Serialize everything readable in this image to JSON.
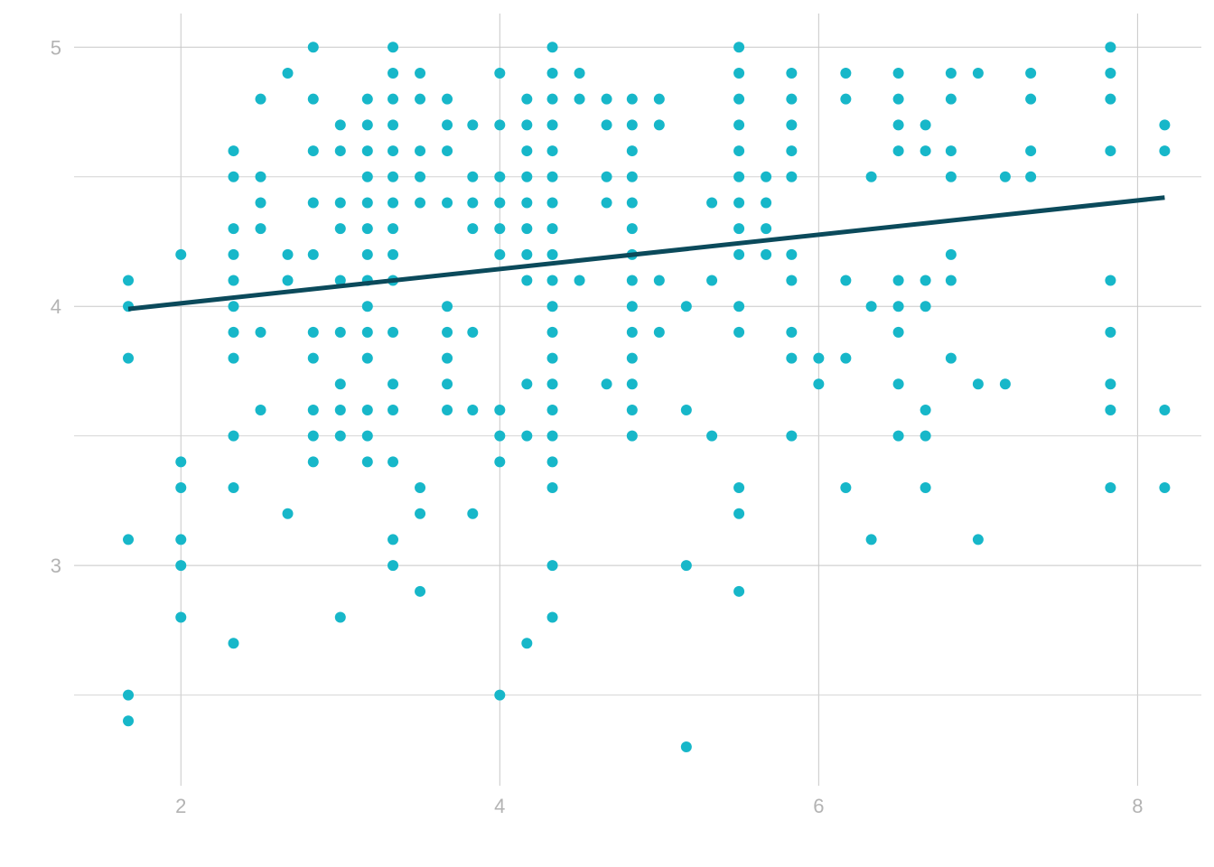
{
  "chart_data": {
    "type": "scatter",
    "title": "",
    "xlabel": "",
    "ylabel": "",
    "xlim": [
      1.33,
      8.4
    ],
    "ylim": [
      2.15,
      5.13
    ],
    "x_ticks": [
      2,
      4,
      6,
      8
    ],
    "x_tick_labels": [
      "2",
      "4",
      "6",
      "8"
    ],
    "y_ticks": [
      3,
      4,
      5
    ],
    "y_tick_labels": [
      "3",
      "4",
      "5"
    ],
    "y_minor_gridlines": [
      2.5,
      3.5,
      4.5
    ],
    "grid": true,
    "legend": "none",
    "colors": {
      "points": "#17b7c9",
      "fit_line": "#0b4a5b",
      "grid": "#c8c8c8",
      "tick_text": "#b3b3b3"
    },
    "fit_line": {
      "x": [
        1.67,
        8.17
      ],
      "y": [
        3.99,
        4.42
      ]
    },
    "points": [
      [
        1.67,
        4.1
      ],
      [
        1.67,
        4.0
      ],
      [
        1.67,
        3.8
      ],
      [
        1.67,
        3.1
      ],
      [
        1.67,
        2.5
      ],
      [
        1.67,
        2.4
      ],
      [
        2.0,
        4.2
      ],
      [
        2.0,
        3.4
      ],
      [
        2.0,
        3.3
      ],
      [
        2.0,
        3.1
      ],
      [
        2.0,
        3.0
      ],
      [
        2.0,
        2.8
      ],
      [
        2.33,
        4.6
      ],
      [
        2.33,
        4.5
      ],
      [
        2.33,
        4.3
      ],
      [
        2.33,
        4.2
      ],
      [
        2.33,
        4.1
      ],
      [
        2.33,
        4.0
      ],
      [
        2.33,
        3.9
      ],
      [
        2.33,
        3.8
      ],
      [
        2.33,
        3.5
      ],
      [
        2.33,
        3.3
      ],
      [
        2.33,
        2.7
      ],
      [
        2.5,
        4.8
      ],
      [
        2.5,
        4.5
      ],
      [
        2.5,
        4.4
      ],
      [
        2.5,
        4.3
      ],
      [
        2.5,
        3.9
      ],
      [
        2.5,
        3.6
      ],
      [
        2.67,
        4.9
      ],
      [
        2.67,
        4.2
      ],
      [
        2.67,
        4.1
      ],
      [
        2.67,
        3.2
      ],
      [
        2.83,
        5.0
      ],
      [
        2.83,
        4.8
      ],
      [
        2.83,
        4.6
      ],
      [
        2.83,
        4.4
      ],
      [
        2.83,
        4.2
      ],
      [
        2.83,
        3.9
      ],
      [
        2.83,
        3.8
      ],
      [
        2.83,
        3.6
      ],
      [
        2.83,
        3.5
      ],
      [
        2.83,
        3.4
      ],
      [
        3.0,
        4.7
      ],
      [
        3.0,
        4.6
      ],
      [
        3.0,
        4.4
      ],
      [
        3.0,
        4.3
      ],
      [
        3.0,
        4.1
      ],
      [
        3.0,
        3.9
      ],
      [
        3.0,
        3.7
      ],
      [
        3.0,
        3.6
      ],
      [
        3.0,
        3.5
      ],
      [
        3.0,
        2.8
      ],
      [
        3.17,
        4.8
      ],
      [
        3.17,
        4.7
      ],
      [
        3.17,
        4.6
      ],
      [
        3.17,
        4.5
      ],
      [
        3.17,
        4.4
      ],
      [
        3.17,
        4.3
      ],
      [
        3.17,
        4.2
      ],
      [
        3.17,
        4.1
      ],
      [
        3.17,
        4.0
      ],
      [
        3.17,
        3.9
      ],
      [
        3.17,
        3.8
      ],
      [
        3.17,
        3.6
      ],
      [
        3.17,
        3.5
      ],
      [
        3.17,
        3.4
      ],
      [
        3.33,
        5.0
      ],
      [
        3.33,
        4.9
      ],
      [
        3.33,
        4.8
      ],
      [
        3.33,
        4.7
      ],
      [
        3.33,
        4.6
      ],
      [
        3.33,
        4.5
      ],
      [
        3.33,
        4.4
      ],
      [
        3.33,
        4.3
      ],
      [
        3.33,
        4.2
      ],
      [
        3.33,
        4.1
      ],
      [
        3.33,
        3.9
      ],
      [
        3.33,
        3.7
      ],
      [
        3.33,
        3.6
      ],
      [
        3.33,
        3.4
      ],
      [
        3.33,
        3.1
      ],
      [
        3.33,
        3.0
      ],
      [
        3.5,
        4.9
      ],
      [
        3.5,
        4.8
      ],
      [
        3.5,
        4.6
      ],
      [
        3.5,
        4.5
      ],
      [
        3.5,
        4.4
      ],
      [
        3.5,
        3.3
      ],
      [
        3.5,
        3.2
      ],
      [
        3.5,
        2.9
      ],
      [
        3.67,
        4.8
      ],
      [
        3.67,
        4.7
      ],
      [
        3.67,
        4.6
      ],
      [
        3.67,
        4.4
      ],
      [
        3.67,
        4.0
      ],
      [
        3.67,
        3.9
      ],
      [
        3.67,
        3.8
      ],
      [
        3.67,
        3.7
      ],
      [
        3.67,
        3.6
      ],
      [
        3.83,
        4.7
      ],
      [
        3.83,
        4.5
      ],
      [
        3.83,
        4.4
      ],
      [
        3.83,
        4.3
      ],
      [
        3.83,
        3.9
      ],
      [
        3.83,
        3.6
      ],
      [
        3.83,
        3.2
      ],
      [
        4.0,
        4.9
      ],
      [
        4.0,
        4.7
      ],
      [
        4.0,
        4.5
      ],
      [
        4.0,
        4.4
      ],
      [
        4.0,
        4.3
      ],
      [
        4.0,
        4.2
      ],
      [
        4.0,
        3.6
      ],
      [
        4.0,
        3.5
      ],
      [
        4.0,
        3.4
      ],
      [
        4.0,
        2.5
      ],
      [
        4.17,
        4.8
      ],
      [
        4.17,
        4.7
      ],
      [
        4.17,
        4.6
      ],
      [
        4.17,
        4.5
      ],
      [
        4.17,
        4.4
      ],
      [
        4.17,
        4.3
      ],
      [
        4.17,
        4.2
      ],
      [
        4.17,
        4.1
      ],
      [
        4.17,
        3.7
      ],
      [
        4.17,
        3.5
      ],
      [
        4.17,
        2.7
      ],
      [
        4.33,
        5.0
      ],
      [
        4.33,
        4.9
      ],
      [
        4.33,
        4.8
      ],
      [
        4.33,
        4.7
      ],
      [
        4.33,
        4.6
      ],
      [
        4.33,
        4.5
      ],
      [
        4.33,
        4.4
      ],
      [
        4.33,
        4.3
      ],
      [
        4.33,
        4.2
      ],
      [
        4.33,
        4.1
      ],
      [
        4.33,
        4.0
      ],
      [
        4.33,
        3.9
      ],
      [
        4.33,
        3.8
      ],
      [
        4.33,
        3.7
      ],
      [
        4.33,
        3.6
      ],
      [
        4.33,
        3.5
      ],
      [
        4.33,
        3.4
      ],
      [
        4.33,
        3.3
      ],
      [
        4.33,
        3.0
      ],
      [
        4.33,
        2.8
      ],
      [
        4.5,
        4.9
      ],
      [
        4.5,
        4.8
      ],
      [
        4.5,
        4.1
      ],
      [
        4.67,
        4.8
      ],
      [
        4.67,
        4.7
      ],
      [
        4.67,
        4.5
      ],
      [
        4.67,
        4.4
      ],
      [
        4.67,
        3.7
      ],
      [
        4.83,
        4.8
      ],
      [
        4.83,
        4.7
      ],
      [
        4.83,
        4.6
      ],
      [
        4.83,
        4.5
      ],
      [
        4.83,
        4.4
      ],
      [
        4.83,
        4.3
      ],
      [
        4.83,
        4.2
      ],
      [
        4.83,
        4.1
      ],
      [
        4.83,
        4.0
      ],
      [
        4.83,
        3.9
      ],
      [
        4.83,
        3.8
      ],
      [
        4.83,
        3.7
      ],
      [
        4.83,
        3.6
      ],
      [
        4.83,
        3.5
      ],
      [
        5.0,
        4.8
      ],
      [
        5.0,
        4.7
      ],
      [
        5.0,
        4.1
      ],
      [
        5.0,
        3.9
      ],
      [
        5.17,
        4.0
      ],
      [
        5.17,
        3.6
      ],
      [
        5.17,
        3.0
      ],
      [
        5.17,
        2.3
      ],
      [
        5.33,
        4.4
      ],
      [
        5.33,
        4.1
      ],
      [
        5.33,
        3.5
      ],
      [
        5.5,
        5.0
      ],
      [
        5.5,
        4.9
      ],
      [
        5.5,
        4.8
      ],
      [
        5.5,
        4.7
      ],
      [
        5.5,
        4.6
      ],
      [
        5.5,
        4.5
      ],
      [
        5.5,
        4.4
      ],
      [
        5.5,
        4.3
      ],
      [
        5.5,
        4.2
      ],
      [
        5.5,
        4.0
      ],
      [
        5.5,
        3.9
      ],
      [
        5.5,
        3.3
      ],
      [
        5.5,
        3.2
      ],
      [
        5.5,
        2.9
      ],
      [
        5.67,
        4.5
      ],
      [
        5.67,
        4.4
      ],
      [
        5.67,
        4.3
      ],
      [
        5.67,
        4.2
      ],
      [
        5.83,
        4.9
      ],
      [
        5.83,
        4.8
      ],
      [
        5.83,
        4.7
      ],
      [
        5.83,
        4.6
      ],
      [
        5.83,
        4.5
      ],
      [
        5.83,
        4.2
      ],
      [
        5.83,
        4.1
      ],
      [
        5.83,
        3.9
      ],
      [
        5.83,
        3.8
      ],
      [
        5.83,
        3.5
      ],
      [
        6.0,
        3.8
      ],
      [
        6.0,
        3.7
      ],
      [
        6.17,
        4.9
      ],
      [
        6.17,
        4.8
      ],
      [
        6.17,
        4.1
      ],
      [
        6.17,
        3.8
      ],
      [
        6.17,
        3.3
      ],
      [
        6.33,
        4.5
      ],
      [
        6.33,
        4.0
      ],
      [
        6.33,
        3.1
      ],
      [
        6.5,
        4.9
      ],
      [
        6.5,
        4.8
      ],
      [
        6.5,
        4.7
      ],
      [
        6.5,
        4.6
      ],
      [
        6.5,
        4.1
      ],
      [
        6.5,
        4.0
      ],
      [
        6.5,
        3.9
      ],
      [
        6.5,
        3.7
      ],
      [
        6.5,
        3.5
      ],
      [
        6.67,
        4.7
      ],
      [
        6.67,
        4.6
      ],
      [
        6.67,
        4.1
      ],
      [
        6.67,
        4.0
      ],
      [
        6.67,
        3.6
      ],
      [
        6.67,
        3.5
      ],
      [
        6.67,
        3.3
      ],
      [
        6.83,
        4.9
      ],
      [
        6.83,
        4.8
      ],
      [
        6.83,
        4.6
      ],
      [
        6.83,
        4.5
      ],
      [
        6.83,
        4.2
      ],
      [
        6.83,
        4.1
      ],
      [
        6.83,
        3.8
      ],
      [
        7.0,
        4.9
      ],
      [
        7.0,
        3.7
      ],
      [
        7.0,
        3.1
      ],
      [
        7.17,
        4.5
      ],
      [
        7.17,
        3.7
      ],
      [
        7.33,
        4.9
      ],
      [
        7.33,
        4.8
      ],
      [
        7.33,
        4.6
      ],
      [
        7.33,
        4.5
      ],
      [
        7.83,
        5.0
      ],
      [
        7.83,
        4.9
      ],
      [
        7.83,
        4.8
      ],
      [
        7.83,
        4.6
      ],
      [
        7.83,
        4.1
      ],
      [
        7.83,
        3.9
      ],
      [
        7.83,
        3.7
      ],
      [
        7.83,
        3.6
      ],
      [
        7.83,
        3.3
      ],
      [
        8.17,
        4.7
      ],
      [
        8.17,
        4.6
      ],
      [
        8.17,
        3.6
      ],
      [
        8.17,
        3.3
      ]
    ]
  }
}
